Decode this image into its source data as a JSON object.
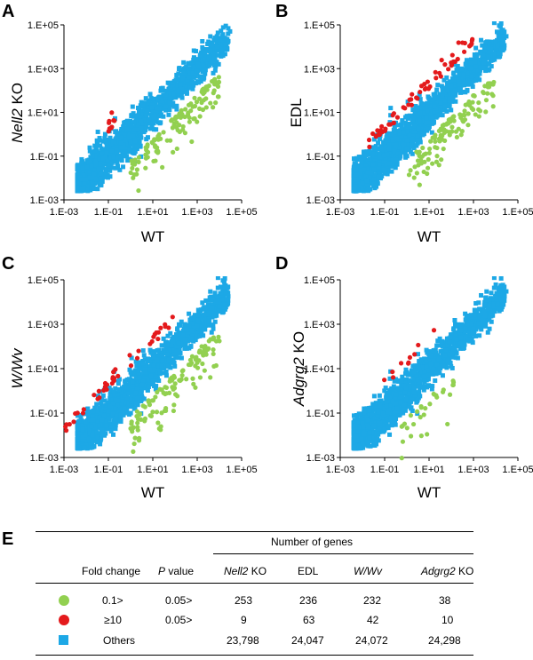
{
  "panel_letters": [
    "A",
    "B",
    "C",
    "D",
    "E"
  ],
  "colors": {
    "green": "#92d050",
    "red": "#e41a1c",
    "blue": "#1da8e6"
  },
  "chart_data": [
    {
      "type": "scatter",
      "panel": "A",
      "log_scale": true,
      "xlabel": "WT",
      "ylabel": {
        "italic": "Nell2",
        "plain": " KO"
      },
      "xlim": [
        0.001,
        100000
      ],
      "ylim": [
        0.001,
        100000
      ],
      "ticks": [
        "1.E-03",
        "1.E-01",
        "1.E+01",
        "1.E+03",
        "1.E+05"
      ],
      "series": [
        {
          "name": "Others",
          "marker": "square",
          "color": "#1da8e6",
          "count": 23798,
          "trend": "diagonal y≈x cloud",
          "extremes": [
            [
              0.004,
              0.003
            ],
            [
              30000,
              50000
            ]
          ]
        },
        {
          "name": "0.1>",
          "marker": "circle",
          "color": "#92d050",
          "count": 253,
          "trend": "below cloud",
          "extremes": [
            [
              1,
              0.05
            ],
            [
              10000,
              5
            ]
          ]
        },
        {
          "name": "≥10",
          "marker": "circle",
          "color": "#e41a1c",
          "count": 9,
          "trend": "above cloud",
          "extremes": [
            [
              0.1,
              3
            ],
            [
              0.2,
              2
            ]
          ]
        }
      ]
    },
    {
      "type": "scatter",
      "panel": "B",
      "log_scale": true,
      "xlabel": "WT",
      "ylabel": {
        "italic": "",
        "plain": "EDL"
      },
      "xlim": [
        0.001,
        100000
      ],
      "ylim": [
        0.001,
        100000
      ],
      "ticks": [
        "1.E-03",
        "1.E-01",
        "1.E+01",
        "1.E+03",
        "1.E+05"
      ],
      "series": [
        {
          "name": "Others",
          "marker": "square",
          "color": "#1da8e6",
          "count": 24047,
          "trend": "diagonal y≈x cloud",
          "extremes": [
            [
              0.004,
              0.003
            ],
            [
              30000,
              30000
            ]
          ]
        },
        {
          "name": "0.1>",
          "marker": "circle",
          "color": "#92d050",
          "count": 236,
          "trend": "below cloud",
          "extremes": [
            [
              1,
              0.05
            ],
            [
              10000,
              3
            ]
          ]
        },
        {
          "name": "≥10",
          "marker": "circle",
          "color": "#e41a1c",
          "count": 63,
          "trend": "above cloud",
          "extremes": [
            [
              0.02,
              5
            ],
            [
              1000,
              15000
            ]
          ]
        }
      ]
    },
    {
      "type": "scatter",
      "panel": "C",
      "log_scale": true,
      "xlabel": "WT",
      "ylabel": {
        "italic": "W/Wv",
        "plain": ""
      },
      "xlim": [
        0.001,
        100000
      ],
      "ylim": [
        0.001,
        100000
      ],
      "ticks": [
        "1.E-03",
        "1.E-01",
        "1.E+01",
        "1.E+03",
        "1.E+05"
      ],
      "series": [
        {
          "name": "Others",
          "marker": "square",
          "color": "#1da8e6",
          "count": 24072,
          "trend": "diagonal y≈x cloud",
          "extremes": [
            [
              0.004,
              0.003
            ],
            [
              10000,
              10000
            ]
          ]
        },
        {
          "name": "0.1>",
          "marker": "circle",
          "color": "#92d050",
          "count": 232,
          "trend": "below cloud",
          "extremes": [
            [
              1,
              0.05
            ],
            [
              10000,
              5
            ]
          ]
        },
        {
          "name": "≥10",
          "marker": "circle",
          "color": "#e41a1c",
          "count": 42,
          "trend": "above cloud",
          "extremes": [
            [
              0.001,
              2
            ],
            [
              100,
              1000
            ]
          ]
        }
      ]
    },
    {
      "type": "scatter",
      "panel": "D",
      "log_scale": true,
      "xlabel": "WT",
      "ylabel": {
        "italic": "Adgrg2",
        "plain": " KO"
      },
      "xlim": [
        0.001,
        100000
      ],
      "ylim": [
        0.001,
        100000
      ],
      "ticks": [
        "1.E-03",
        "1.E-01",
        "1.E+01",
        "1.E+03",
        "1.E+05"
      ],
      "series": [
        {
          "name": "Others",
          "marker": "square",
          "color": "#1da8e6",
          "count": 24298,
          "trend": "diagonal y≈x cloud",
          "extremes": [
            [
              0.004,
              0.003
            ],
            [
              30000,
              30000
            ]
          ]
        },
        {
          "name": "0.1>",
          "marker": "circle",
          "color": "#92d050",
          "count": 38,
          "trend": "below cloud",
          "extremes": [
            [
              0.5,
              0.05
            ],
            [
              200,
              10
            ]
          ]
        },
        {
          "name": "≥10",
          "marker": "circle",
          "color": "#e41a1c",
          "count": 10,
          "trend": "above cloud",
          "extremes": [
            [
              0.02,
              3
            ],
            [
              20,
              100
            ]
          ]
        }
      ]
    },
    {
      "type": "table",
      "panel": "E",
      "title": "Number of genes",
      "columns": [
        "Fold change",
        "P value",
        "Nell2 KO",
        "EDL",
        "W/Wv",
        "Adgrg2 KO"
      ],
      "rows": [
        {
          "symbol": "green-circle",
          "fold": "0.1>",
          "p": "0.05>",
          "values": [
            "253",
            "236",
            "232",
            "38"
          ]
        },
        {
          "symbol": "red-circle",
          "fold": "≥10",
          "p": "0.05>",
          "values": [
            "9",
            "63",
            "42",
            "10"
          ]
        },
        {
          "symbol": "blue-square",
          "fold": "Others",
          "p": "",
          "values": [
            "23,798",
            "24,047",
            "24,072",
            "24,298"
          ]
        }
      ]
    }
  ]
}
